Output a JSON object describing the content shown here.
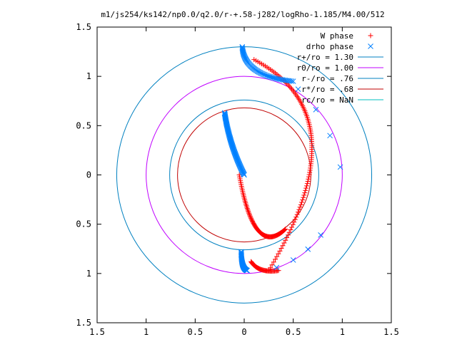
{
  "chart_data": {
    "type": "scatter",
    "title": "m1/js254/ks142/np0.0/q2.0/r-+.58-j282/logRho-1.185/M4.00/512",
    "xlim": [
      -1.5,
      1.5
    ],
    "ylim": [
      -1.5,
      1.5
    ],
    "x_ticks": [
      -1.5,
      -1,
      -0.5,
      0,
      0.5,
      1,
      1.5
    ],
    "x_tick_labels": [
      "1.5",
      "1",
      "0.5",
      "0",
      "0.5",
      "1",
      "1.5"
    ],
    "y_ticks": [
      1.5,
      1,
      0.5,
      0,
      -0.5,
      -1,
      -1.5
    ],
    "y_tick_labels": [
      "1.5",
      "1",
      "0.5",
      "0",
      "0.5",
      "1",
      "1.5"
    ],
    "grid": false,
    "legend_position": "top-right",
    "series": [
      {
        "name": "W phase",
        "marker": "plus",
        "color": "#ff0000",
        "arms": [
          {
            "from": [
              0.1,
              1.17
            ],
            "control": [
              1.2,
              0.6
            ],
            "to": [
              0.25,
              -0.97
            ],
            "n": 110
          },
          {
            "from": [
              -0.05,
              0.0
            ],
            "control": [
              0.1,
              -0.85
            ],
            "to": [
              0.42,
              -0.55
            ],
            "n": 85
          },
          {
            "from": [
              0.07,
              -0.88
            ],
            "control": [
              0.15,
              -1.0
            ],
            "to": [
              0.35,
              -0.97
            ],
            "n": 40
          }
        ]
      },
      {
        "name": "drho phase",
        "marker": "cross",
        "color": "#0080ff",
        "arms": [
          {
            "from": [
              -0.02,
              1.3
            ],
            "control": [
              0.0,
              1.0
            ],
            "to": [
              0.5,
              0.95
            ],
            "n": 60
          },
          {
            "from": [
              -0.2,
              0.63
            ],
            "control": [
              -0.15,
              0.3
            ],
            "to": [
              0.0,
              0.0
            ],
            "n": 80
          },
          {
            "from": [
              -0.03,
              -0.78
            ],
            "control": [
              -0.03,
              -0.95
            ],
            "to": [
              0.03,
              -0.97
            ],
            "n": 35
          },
          {
            "from": [
              0.55,
              0.87
            ],
            "control": [
              0.85,
              0.6
            ],
            "to": [
              0.98,
              0.08
            ],
            "n": 4
          },
          {
            "from": [
              0.78,
              -0.61
            ],
            "control": [
              0.6,
              -0.85
            ],
            "to": [
              0.33,
              -0.94
            ],
            "n": 4
          }
        ]
      }
    ],
    "circles": [
      {
        "name": "r+/ro = 1.30",
        "r": 1.3,
        "color": "#0080c0"
      },
      {
        "name": "r0/ro = 1.00",
        "r": 1.0,
        "color": "#c000ff"
      },
      {
        "name": "r-/ro = .76",
        "r": 0.76,
        "color": "#0080c0"
      },
      {
        "name": "r*/ro = .68",
        "r": 0.68,
        "color": "#c00000"
      },
      {
        "name": "rc/ro = NaN",
        "r": null,
        "color": "#00c0c0"
      }
    ]
  }
}
